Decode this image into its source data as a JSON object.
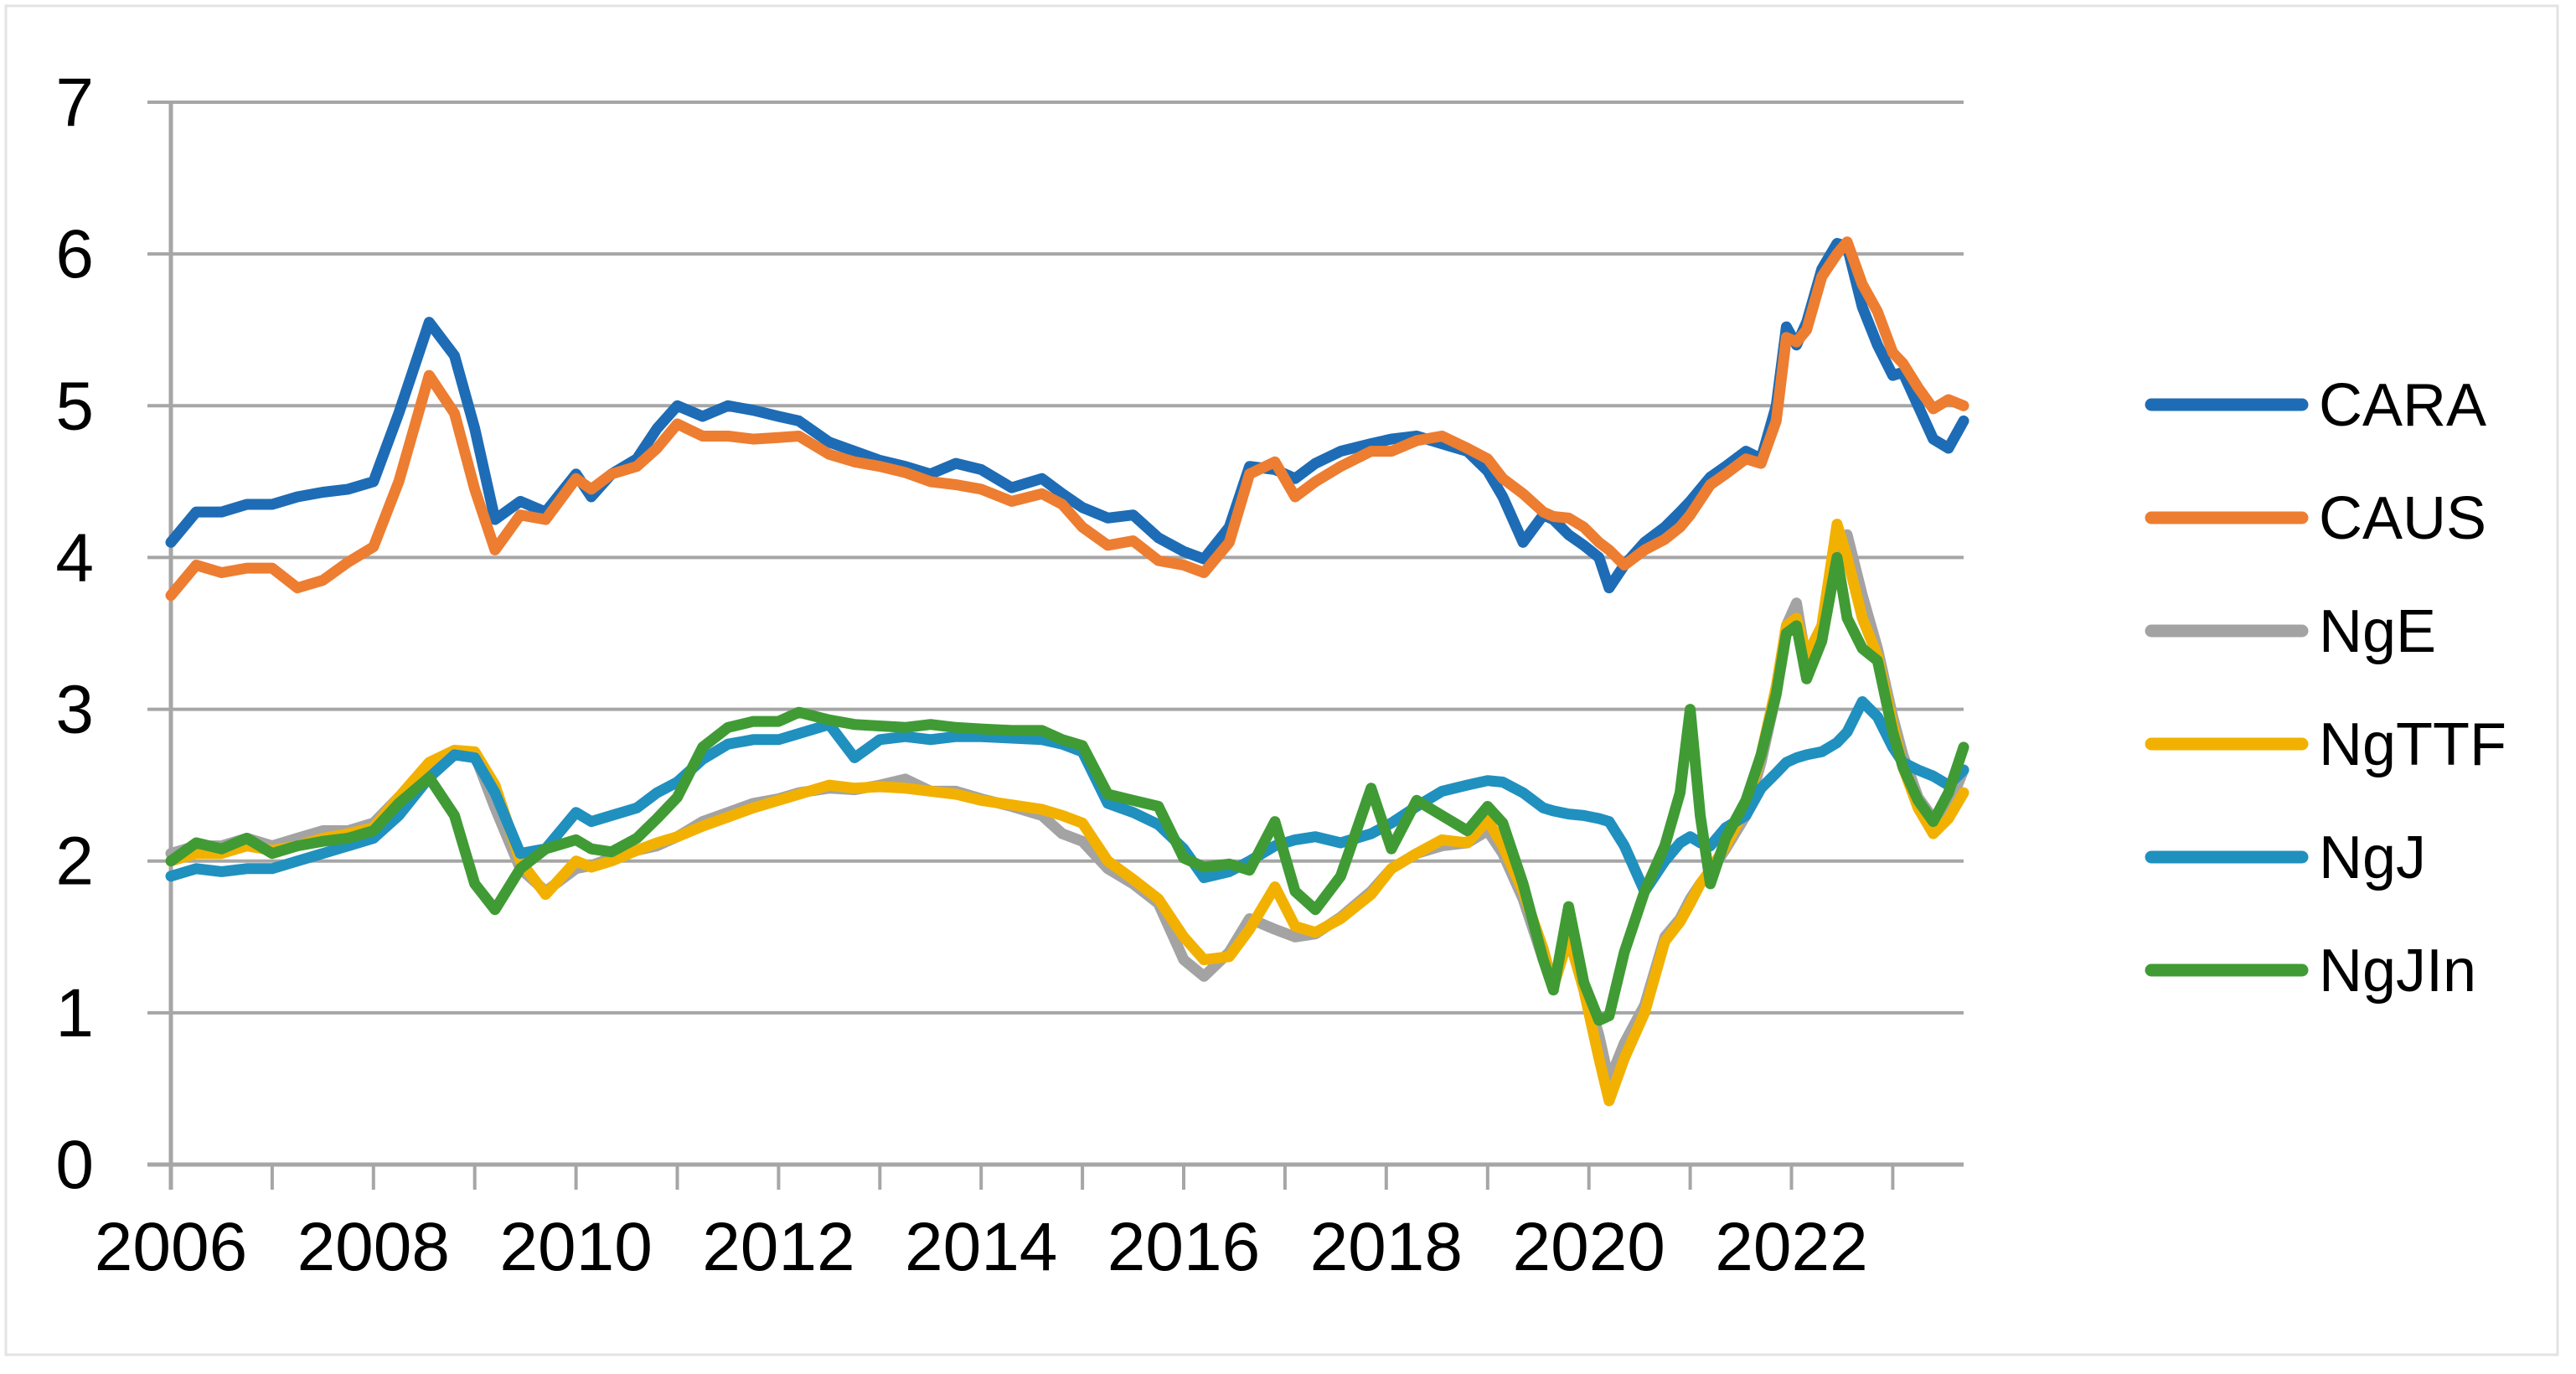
{
  "window": {
    "background": "#FFFFFF",
    "frame_border_color": "#E3E3E3"
  },
  "chart_data": {
    "type": "line",
    "title": "",
    "xlabel": "",
    "ylabel": "",
    "xlim": [
      2006.0,
      2023.7
    ],
    "ylim": [
      0,
      7
    ],
    "grid": true,
    "grid_color": "#A6A6A6",
    "axis_color": "#A6A6A6",
    "tick_label_color": "#000000",
    "legend_position": "right",
    "y_ticks": [
      0,
      1,
      2,
      3,
      4,
      5,
      6,
      7
    ],
    "y_tick_labels": [
      "0",
      "1",
      "2",
      "3",
      "4",
      "5",
      "6",
      "7"
    ],
    "x_minor_tick_years": [
      2006,
      2007,
      2008,
      2009,
      2010,
      2011,
      2012,
      2013,
      2014,
      2015,
      2016,
      2017,
      2018,
      2019,
      2020,
      2021,
      2022,
      2023
    ],
    "x_tick_labels": [
      {
        "year": 2006,
        "label": "2006"
      },
      {
        "year": 2008,
        "label": "2008"
      },
      {
        "year": 2010,
        "label": "2010"
      },
      {
        "year": 2012,
        "label": "2012"
      },
      {
        "year": 2014,
        "label": "2014"
      },
      {
        "year": 2016,
        "label": "2016"
      },
      {
        "year": 2018,
        "label": "2018"
      },
      {
        "year": 2020,
        "label": "2020"
      },
      {
        "year": 2022,
        "label": "2022"
      }
    ],
    "x": [
      2006.0,
      2006.25,
      2006.5,
      2006.75,
      2007.0,
      2007.25,
      2007.5,
      2007.75,
      2008.0,
      2008.25,
      2008.55,
      2008.8,
      2009.0,
      2009.2,
      2009.45,
      2009.7,
      2010.0,
      2010.15,
      2010.35,
      2010.6,
      2010.8,
      2011.0,
      2011.25,
      2011.5,
      2011.75,
      2012.0,
      2012.2,
      2012.5,
      2012.75,
      2013.0,
      2013.25,
      2013.5,
      2013.75,
      2014.0,
      2014.3,
      2014.6,
      2014.8,
      2015.0,
      2015.25,
      2015.5,
      2015.75,
      2016.0,
      2016.2,
      2016.45,
      2016.65,
      2016.9,
      2017.1,
      2017.3,
      2017.55,
      2017.85,
      2018.05,
      2018.3,
      2018.55,
      2018.8,
      2019.0,
      2019.15,
      2019.35,
      2019.55,
      2019.65,
      2019.8,
      2019.95,
      2020.1,
      2020.2,
      2020.35,
      2020.55,
      2020.75,
      2020.9,
      2021.0,
      2021.1,
      2021.2,
      2021.35,
      2021.55,
      2021.7,
      2021.85,
      2021.95,
      2022.05,
      2022.15,
      2022.3,
      2022.45,
      2022.55,
      2022.7,
      2022.85,
      2023.0,
      2023.1,
      2023.25,
      2023.4,
      2023.55,
      2023.7
    ],
    "series": [
      {
        "name": "CARA",
        "color": "#1E6CB5",
        "values": [
          4.1,
          4.3,
          4.3,
          4.35,
          4.35,
          4.4,
          4.43,
          4.45,
          4.5,
          4.95,
          5.55,
          5.33,
          4.85,
          4.25,
          4.37,
          4.3,
          4.55,
          4.4,
          4.55,
          4.65,
          4.85,
          5.0,
          4.93,
          5.0,
          4.97,
          4.93,
          4.9,
          4.76,
          4.7,
          4.64,
          4.6,
          4.55,
          4.62,
          4.58,
          4.46,
          4.52,
          4.42,
          4.33,
          4.26,
          4.28,
          4.13,
          4.04,
          3.99,
          4.2,
          4.6,
          4.58,
          4.52,
          4.62,
          4.7,
          4.75,
          4.78,
          4.8,
          4.75,
          4.7,
          4.57,
          4.4,
          4.1,
          4.28,
          4.25,
          4.15,
          4.08,
          4.0,
          3.8,
          3.95,
          4.1,
          4.2,
          4.3,
          4.37,
          4.45,
          4.53,
          4.6,
          4.7,
          4.65,
          5.0,
          5.52,
          5.4,
          5.55,
          5.9,
          6.07,
          6.05,
          5.65,
          5.4,
          5.2,
          5.22,
          5.0,
          4.78,
          4.72,
          4.9
        ]
      },
      {
        "name": "CAUS",
        "color": "#ED7D31",
        "values": [
          3.75,
          3.95,
          3.9,
          3.93,
          3.93,
          3.8,
          3.85,
          3.97,
          4.07,
          4.5,
          5.2,
          4.95,
          4.45,
          4.05,
          4.28,
          4.25,
          4.52,
          4.45,
          4.55,
          4.6,
          4.72,
          4.88,
          4.8,
          4.8,
          4.78,
          4.79,
          4.8,
          4.68,
          4.63,
          4.6,
          4.56,
          4.5,
          4.48,
          4.45,
          4.37,
          4.42,
          4.35,
          4.2,
          4.08,
          4.11,
          3.98,
          3.95,
          3.9,
          4.1,
          4.55,
          4.63,
          4.4,
          4.5,
          4.6,
          4.7,
          4.7,
          4.77,
          4.8,
          4.72,
          4.65,
          4.52,
          4.42,
          4.3,
          4.27,
          4.26,
          4.2,
          4.1,
          4.05,
          3.95,
          4.05,
          4.12,
          4.2,
          4.28,
          4.38,
          4.48,
          4.55,
          4.65,
          4.62,
          4.9,
          5.45,
          5.42,
          5.5,
          5.85,
          6.0,
          6.08,
          5.8,
          5.62,
          5.35,
          5.28,
          5.12,
          4.98,
          5.04,
          5.0
        ]
      },
      {
        "name": "NgE",
        "color": "#A3A3A3",
        "values": [
          2.05,
          2.1,
          2.1,
          2.15,
          2.1,
          2.15,
          2.2,
          2.2,
          2.25,
          2.42,
          2.62,
          2.72,
          2.7,
          2.35,
          1.95,
          1.8,
          1.95,
          1.97,
          2.02,
          2.07,
          2.1,
          2.16,
          2.26,
          2.32,
          2.38,
          2.41,
          2.45,
          2.48,
          2.47,
          2.5,
          2.54,
          2.46,
          2.46,
          2.41,
          2.36,
          2.3,
          2.18,
          2.13,
          1.95,
          1.85,
          1.72,
          1.35,
          1.24,
          1.4,
          1.62,
          1.55,
          1.5,
          1.52,
          1.63,
          1.8,
          1.95,
          2.05,
          2.1,
          2.12,
          2.2,
          2.05,
          1.75,
          1.35,
          1.2,
          1.55,
          1.2,
          0.85,
          0.55,
          0.8,
          1.05,
          1.5,
          1.62,
          1.75,
          1.85,
          1.93,
          2.08,
          2.3,
          2.65,
          3.1,
          3.55,
          3.7,
          3.3,
          3.5,
          4.05,
          4.15,
          3.75,
          3.4,
          2.95,
          2.7,
          2.42,
          2.28,
          2.35,
          2.6
        ]
      },
      {
        "name": "NgTTF",
        "color": "#F2B100",
        "values": [
          2.0,
          2.05,
          2.05,
          2.1,
          2.07,
          2.1,
          2.15,
          2.18,
          2.22,
          2.42,
          2.65,
          2.73,
          2.72,
          2.5,
          2.0,
          1.78,
          2.0,
          1.96,
          2.0,
          2.07,
          2.12,
          2.16,
          2.23,
          2.29,
          2.35,
          2.4,
          2.44,
          2.5,
          2.48,
          2.49,
          2.48,
          2.46,
          2.44,
          2.4,
          2.37,
          2.34,
          2.3,
          2.25,
          2.0,
          1.88,
          1.75,
          1.5,
          1.35,
          1.37,
          1.55,
          1.83,
          1.57,
          1.53,
          1.62,
          1.78,
          1.95,
          2.05,
          2.14,
          2.12,
          2.27,
          2.1,
          1.8,
          1.42,
          1.17,
          1.5,
          1.15,
          0.7,
          0.42,
          0.7,
          1.0,
          1.47,
          1.6,
          1.72,
          1.85,
          1.94,
          2.1,
          2.35,
          2.7,
          3.15,
          3.55,
          3.6,
          3.35,
          3.55,
          4.22,
          4.0,
          3.6,
          3.35,
          2.9,
          2.62,
          2.35,
          2.18,
          2.28,
          2.45
        ]
      },
      {
        "name": "NgJ",
        "color": "#2090BF",
        "values": [
          1.9,
          1.95,
          1.93,
          1.95,
          1.95,
          2.0,
          2.05,
          2.1,
          2.15,
          2.3,
          2.55,
          2.7,
          2.68,
          2.45,
          2.05,
          2.08,
          2.32,
          2.26,
          2.3,
          2.35,
          2.45,
          2.52,
          2.67,
          2.77,
          2.8,
          2.8,
          2.84,
          2.9,
          2.68,
          2.8,
          2.82,
          2.8,
          2.82,
          2.82,
          2.81,
          2.8,
          2.77,
          2.72,
          2.38,
          2.32,
          2.24,
          2.08,
          1.89,
          1.93,
          2.0,
          2.1,
          2.14,
          2.16,
          2.12,
          2.18,
          2.25,
          2.36,
          2.46,
          2.5,
          2.53,
          2.52,
          2.45,
          2.35,
          2.33,
          2.31,
          2.3,
          2.28,
          2.26,
          2.1,
          1.8,
          2.0,
          2.12,
          2.16,
          2.12,
          2.1,
          2.22,
          2.3,
          2.48,
          2.58,
          2.65,
          2.68,
          2.7,
          2.72,
          2.78,
          2.85,
          3.05,
          2.95,
          2.75,
          2.65,
          2.6,
          2.56,
          2.5,
          2.6
        ]
      },
      {
        "name": "NgJIn",
        "color": "#409B35",
        "values": [
          2.0,
          2.12,
          2.08,
          2.15,
          2.05,
          2.1,
          2.13,
          2.15,
          2.2,
          2.38,
          2.55,
          2.3,
          1.85,
          1.68,
          1.95,
          2.08,
          2.14,
          2.08,
          2.06,
          2.15,
          2.28,
          2.42,
          2.75,
          2.88,
          2.92,
          2.92,
          2.98,
          2.93,
          2.9,
          2.89,
          2.88,
          2.9,
          2.88,
          2.87,
          2.86,
          2.86,
          2.8,
          2.76,
          2.44,
          2.4,
          2.36,
          2.02,
          1.96,
          1.98,
          1.94,
          2.26,
          1.8,
          1.68,
          1.9,
          2.48,
          2.08,
          2.4,
          2.3,
          2.2,
          2.36,
          2.25,
          1.85,
          1.35,
          1.15,
          1.7,
          1.2,
          0.95,
          0.98,
          1.4,
          1.8,
          2.1,
          2.45,
          3.0,
          2.3,
          1.85,
          2.15,
          2.4,
          2.7,
          3.1,
          3.5,
          3.55,
          3.2,
          3.45,
          4.0,
          3.6,
          3.4,
          3.32,
          2.85,
          2.62,
          2.4,
          2.26,
          2.45,
          2.75
        ]
      }
    ]
  }
}
